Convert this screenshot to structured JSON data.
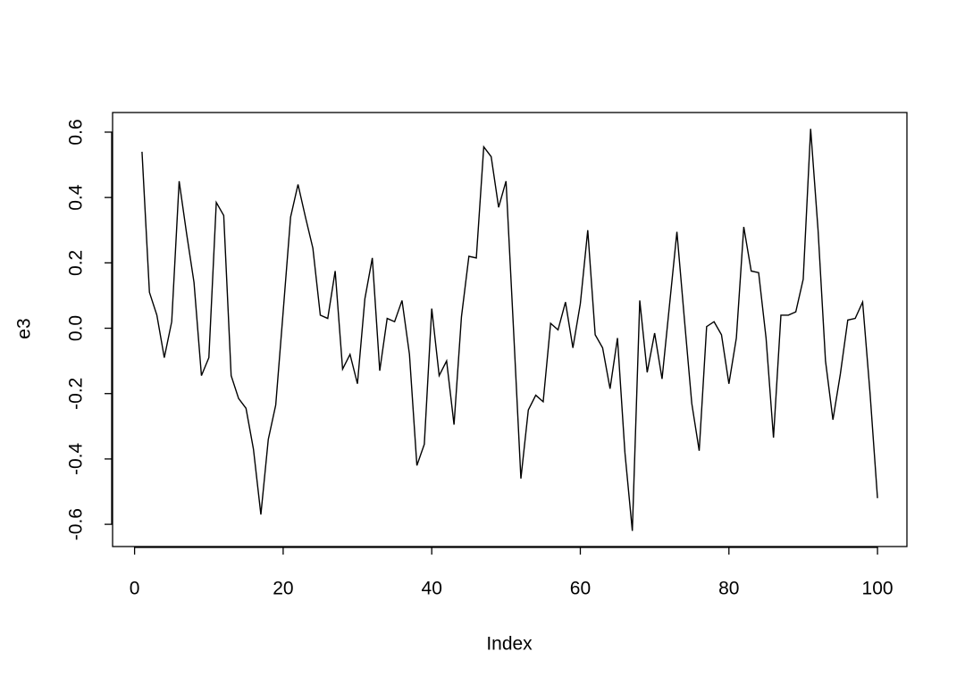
{
  "chart_data": {
    "type": "line",
    "xlabel": "Index",
    "ylabel": "e3",
    "color": "#000000",
    "x": [
      1,
      2,
      3,
      4,
      5,
      6,
      7,
      8,
      9,
      10,
      11,
      12,
      13,
      14,
      15,
      16,
      17,
      18,
      19,
      20,
      21,
      22,
      23,
      24,
      25,
      26,
      27,
      28,
      29,
      30,
      31,
      32,
      33,
      34,
      35,
      36,
      37,
      38,
      39,
      40,
      41,
      42,
      43,
      44,
      45,
      46,
      47,
      48,
      49,
      50,
      51,
      52,
      53,
      54,
      55,
      56,
      57,
      58,
      59,
      60,
      61,
      62,
      63,
      64,
      65,
      66,
      67,
      68,
      69,
      70,
      71,
      72,
      73,
      74,
      75,
      76,
      77,
      78,
      79,
      80,
      81,
      82,
      83,
      84,
      85,
      86,
      87,
      88,
      89,
      90,
      91,
      92,
      93,
      94,
      95,
      96,
      97,
      98,
      99,
      100
    ],
    "values": [
      0.54,
      0.11,
      0.04,
      -0.09,
      0.02,
      0.45,
      0.29,
      0.14,
      -0.145,
      -0.09,
      0.385,
      0.345,
      -0.145,
      -0.215,
      -0.245,
      -0.37,
      -0.57,
      -0.34,
      -0.235,
      0.05,
      0.34,
      0.44,
      0.34,
      0.245,
      0.04,
      0.03,
      0.175,
      -0.125,
      -0.08,
      -0.17,
      0.09,
      0.215,
      -0.13,
      0.03,
      0.02,
      0.085,
      -0.08,
      -0.42,
      -0.355,
      0.06,
      -0.145,
      -0.1,
      -0.295,
      0.035,
      0.22,
      0.215,
      0.555,
      0.525,
      0.37,
      0.45,
      0.0,
      -0.46,
      -0.25,
      -0.205,
      -0.225,
      0.015,
      -0.005,
      0.08,
      -0.06,
      0.075,
      0.3,
      -0.02,
      -0.06,
      -0.185,
      -0.03,
      -0.38,
      -0.62,
      0.085,
      -0.135,
      -0.015,
      -0.155,
      0.07,
      0.295,
      0.03,
      -0.23,
      -0.375,
      0.005,
      0.02,
      -0.02,
      -0.17,
      -0.03,
      0.31,
      0.175,
      0.17,
      -0.03,
      -0.335,
      0.04,
      0.04,
      0.05,
      0.15,
      0.61,
      0.3,
      -0.1,
      -0.28,
      -0.14,
      0.025,
      0.03,
      0.08,
      -0.2,
      -0.52
    ],
    "xlim": [
      -2.96,
      103.96
    ],
    "xticks": [
      0,
      20,
      40,
      60,
      80,
      100
    ],
    "ylim": [
      -0.668,
      0.66
    ],
    "yticks": [
      -0.6,
      -0.4,
      -0.2,
      {
        "value": 0,
        "label": "0.0"
      },
      0.2,
      0.4,
      0.6
    ]
  }
}
